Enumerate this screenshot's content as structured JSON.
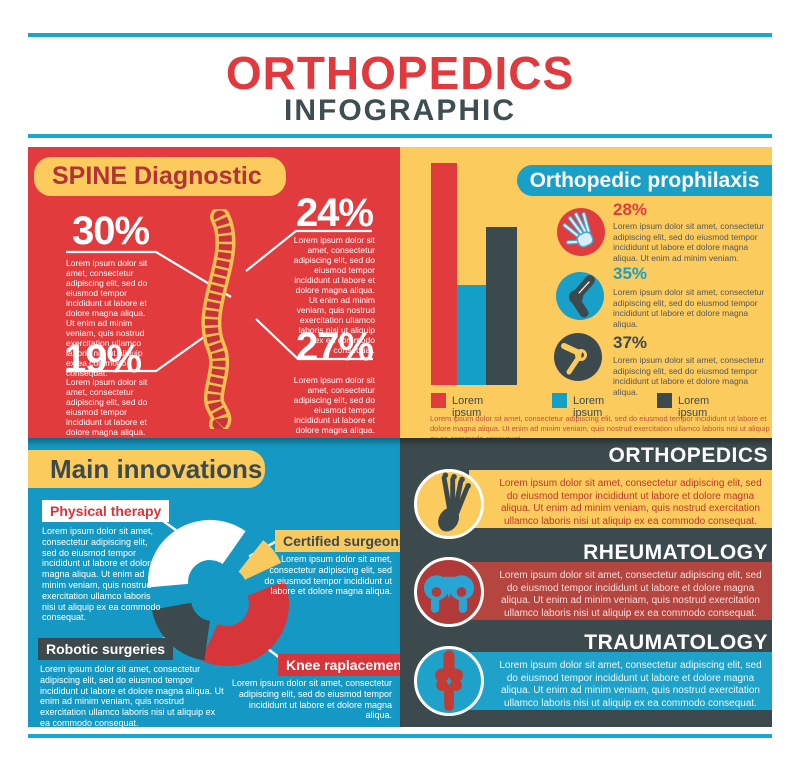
{
  "header": {
    "title": "ORTHOPEDICS",
    "subtitle": "INFOGRAPHIC"
  },
  "colors": {
    "red": "#e23b3e",
    "yellow": "#fbcb5e",
    "cyan": "#1599c4",
    "dark": "#3d4a4d",
    "title_red": "#e0393e",
    "title_dark": "#3e4e52",
    "label_maroon": "#b43338",
    "footnote_red": "#c7503c",
    "band_red": "#b5453f",
    "band_cyan": "#1fa2c9"
  },
  "spine_panel": {
    "title": "SPINE Diagnostic",
    "stats": [
      {
        "value": "30%",
        "text": "Lorem ipsum dolor sit amet, consectetur adipiscing elit, sed do eiusmod tempor incididunt ut labore et dolore magna aliqua. Ut enim ad minim veniam, quis nostrud exercitation ullamco laboris nisi ut aliquip ex ea commodo consequat."
      },
      {
        "value": "24%",
        "text": "Lorem ipsum dolor sit amet, consectetur adipiscing elit, sed do eiusmod tempor incididunt ut labore et dolore magna aliqua. Ut enim ad minim veniam, quis nostrud exercitation ullamco laboris nisi ut aliquip ex ea commodo consequat."
      },
      {
        "value": "19%",
        "text": "Lorem ipsum dolor sit amet, consectetur adipiscing elit, sed do eiusmod tempor incididunt ut labore et dolore magna aliqua."
      },
      {
        "value": "27%",
        "text": "Lorem ipsum dolor sit amet, consectetur adipiscing elit, sed do eiusmod tempor incididunt ut labore et dolore magna aliqua."
      }
    ]
  },
  "prophylaxis_panel": {
    "title": "Orthopedic prophilaxis",
    "items": [
      {
        "value": "28%",
        "icon": "hand-bones-icon",
        "text": "Lorem ipsum dolor sit amet, consectetur adipiscing elit, sed do eiusmod tempor incididunt ut labore et dolore magna aliqua. Ut enim ad minim veniam."
      },
      {
        "value": "35%",
        "icon": "shoulder-joint-icon",
        "text": "Lorem ipsum dolor sit amet, consectetur adipiscing elit, sed do eiusmod tempor incididunt ut labore et dolore magna aliqua."
      },
      {
        "value": "37%",
        "icon": "knee-joint-icon",
        "text": "Lorem ipsum dolor sit amet, consectetur adipiscing elit, sed do eiusmod tempor incididunt ut labore et dolore magna aliqua."
      }
    ],
    "legend": [
      {
        "label": "Lorem ipsum",
        "color": "#e23b3e"
      },
      {
        "label": "Lorem ipsum",
        "color": "#14a0c6"
      },
      {
        "label": "Lorem ipsum",
        "color": "#3d4a4d"
      }
    ],
    "footnote": "Lorem ipsum dolor sit amet, consectetur adipiscing elit, sed do eiusmod tempor incididunt ut labore et dolore magna aliqua. Ut enim ad minim veniam, quis nostrud exercitation ullamco laboris nisi ut aliquip ex ea commodo consequat."
  },
  "innovations_panel": {
    "title": "Main innovations",
    "items": [
      {
        "label": "Physical therapy",
        "text": "Lorem ipsum dolor sit amet, consectetur adipiscing elit, sed do eiusmod tempor incididunt ut labore et dolore magna aliqua. Ut enim ad minim veniam, quis nostrud exercitation ullamco laboris nisi ut aliquip ex ea commodo consequat."
      },
      {
        "label": "Certified surgeons",
        "text": "Lorem ipsum dolor sit amet, consectetur adipiscing elit, sed do eiusmod tempor incididunt ut labore et dolore magna aliqua."
      },
      {
        "label": "Robotic surgeries",
        "text": "Lorem ipsum dolor sit amet, consectetur adipiscing elit, sed do eiusmod tempor incididunt ut labore et dolore magna aliqua. Ut enim ad minim veniam, quis nostrud exercitation ullamco laboris nisi ut aliquip ex ea commodo consequat."
      },
      {
        "label": "Knee raplacement",
        "text": "Lorem ipsum dolor sit amet, consectetur adipiscing elit, sed do eiusmod tempor incididunt ut labore et dolore magna aliqua."
      }
    ]
  },
  "departments_panel": {
    "sections": [
      {
        "title": "ORTHOPEDICS",
        "icon": "foot-bones-icon",
        "text": "Lorem ipsum dolor sit amet, consectetur adipiscing elit, sed do eiusmod tempor incididunt ut labore et dolore magna aliqua. Ut enim ad minim veniam, quis nostrud exercitation ullamco laboris nisi ut aliquip ex ea commodo consequat."
      },
      {
        "title": "RHEUMATOLOGY",
        "icon": "pelvis-bones-icon",
        "text": "Lorem ipsum dolor sit amet, consectetur adipiscing elit, sed do eiusmod tempor incididunt ut labore et dolore magna aliqua. Ut enim ad minim veniam, quis nostrud exercitation ullamco laboris nisi ut aliquip ex ea commodo consequat."
      },
      {
        "title": "TRAUMATOLOGY",
        "icon": "knee-bones-icon",
        "text": "Lorem ipsum dolor sit amet, consectetur adipiscing elit, sed do eiusmod tempor incididunt ut labore et dolore magna aliqua. Ut enim ad minim veniam, quis nostrud exercitation ullamco laboris nisi ut aliquip ex ea commodo consequat."
      }
    ]
  },
  "chart_data": [
    {
      "type": "bar",
      "title": "Orthopedic prophilaxis",
      "categories": [
        "Lorem ipsum",
        "Lorem ipsum",
        "Lorem ipsum"
      ],
      "values": [
        100,
        45,
        71
      ],
      "colors": [
        "#e23b3e",
        "#14a0c6",
        "#3d4a4d"
      ],
      "ylim": [
        0,
        100
      ],
      "xlabel": "",
      "ylabel": "",
      "grid": false,
      "legend_position": "bottom",
      "note": "values are relative bar heights, no axis labels shown"
    },
    {
      "type": "pie",
      "title": "Main innovations",
      "donut": true,
      "segments": [
        {
          "label": "Physical therapy",
          "pct": 36,
          "color": "#ffffff",
          "start": 55,
          "end": 185,
          "offset": [
            -8,
            -12
          ]
        },
        {
          "label": "Certified surgeons",
          "pct": 8,
          "color": "#f7c95f",
          "start": 25,
          "end": 52,
          "offset": [
            7,
            -5
          ]
        },
        {
          "label": "Knee raplacement",
          "pct": 37,
          "color": "#d6363a",
          "start": -115,
          "end": 22,
          "offset": [
            9,
            10
          ]
        },
        {
          "label": "Robotic surgeries",
          "pct": 19,
          "color": "#3d4a4d",
          "start": 190,
          "end": 262,
          "offset": [
            -5,
            5
          ]
        }
      ],
      "legend_position": "callout-labels"
    }
  ]
}
